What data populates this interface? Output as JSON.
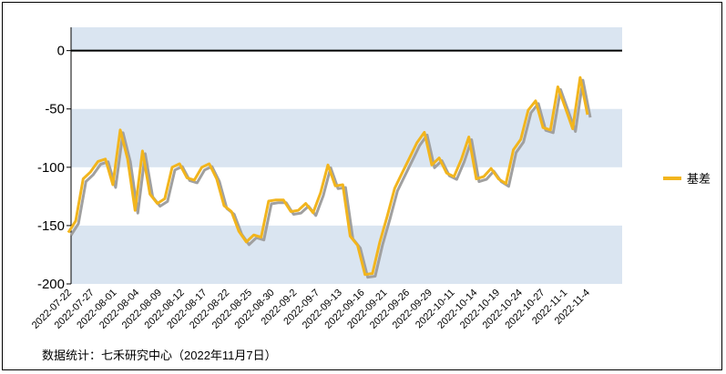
{
  "chart_data": {
    "type": "line",
    "ylim": [
      -200,
      20
    ],
    "yticks": [
      0,
      -50,
      -100,
      -150,
      -200
    ],
    "ytick_labels": [
      "0",
      "-50",
      "-100",
      "-150",
      "-200"
    ],
    "band_color": "#dae5f1",
    "line_color": "#f2b51d",
    "shadow_color": "#a0a0a0",
    "zero_line_color": "#000000",
    "legend_position": "right",
    "x_tick_labels": [
      "2022-07-22",
      "2022-07-27",
      "2022-08-01",
      "2022-08-04",
      "2022-08-09",
      "2022-08-12",
      "2022-08-17",
      "2022-08-22",
      "2022-08-25",
      "2022-08-30",
      "2022-09-2",
      "2022-09-7",
      "2022-09-13",
      "2022-09-16",
      "2022-09-21",
      "2022-09-26",
      "2022-09-29",
      "2022-10-11",
      "2022-10-14",
      "2022-10-19",
      "2022-10-24",
      "2022-10-27",
      "2022-11-1",
      "2022-11-4"
    ],
    "series": [
      {
        "name": "基差",
        "values": [
          -156,
          -146,
          -110,
          -104,
          -95,
          -93,
          -115,
          -68,
          -93,
          -137,
          -86,
          -123,
          -131,
          -127,
          -100,
          -97,
          -109,
          -111,
          -100,
          -97,
          -110,
          -133,
          -138,
          -155,
          -164,
          -158,
          -160,
          -129,
          -128,
          -128,
          -138,
          -137,
          -131,
          -139,
          -122,
          -98,
          -116,
          -115,
          -159,
          -167,
          -192,
          -191,
          -164,
          -142,
          -118,
          -105,
          -92,
          -79,
          -70,
          -98,
          -92,
          -105,
          -108,
          -93,
          -74,
          -110,
          -108,
          -101,
          -110,
          -114,
          -85,
          -76,
          -51,
          -43,
          -66,
          -68,
          -31,
          -49,
          -67,
          -23,
          -55
        ]
      }
    ]
  },
  "footer": {
    "source": "数据统计：七禾研究中心（2022年11月7日）"
  }
}
